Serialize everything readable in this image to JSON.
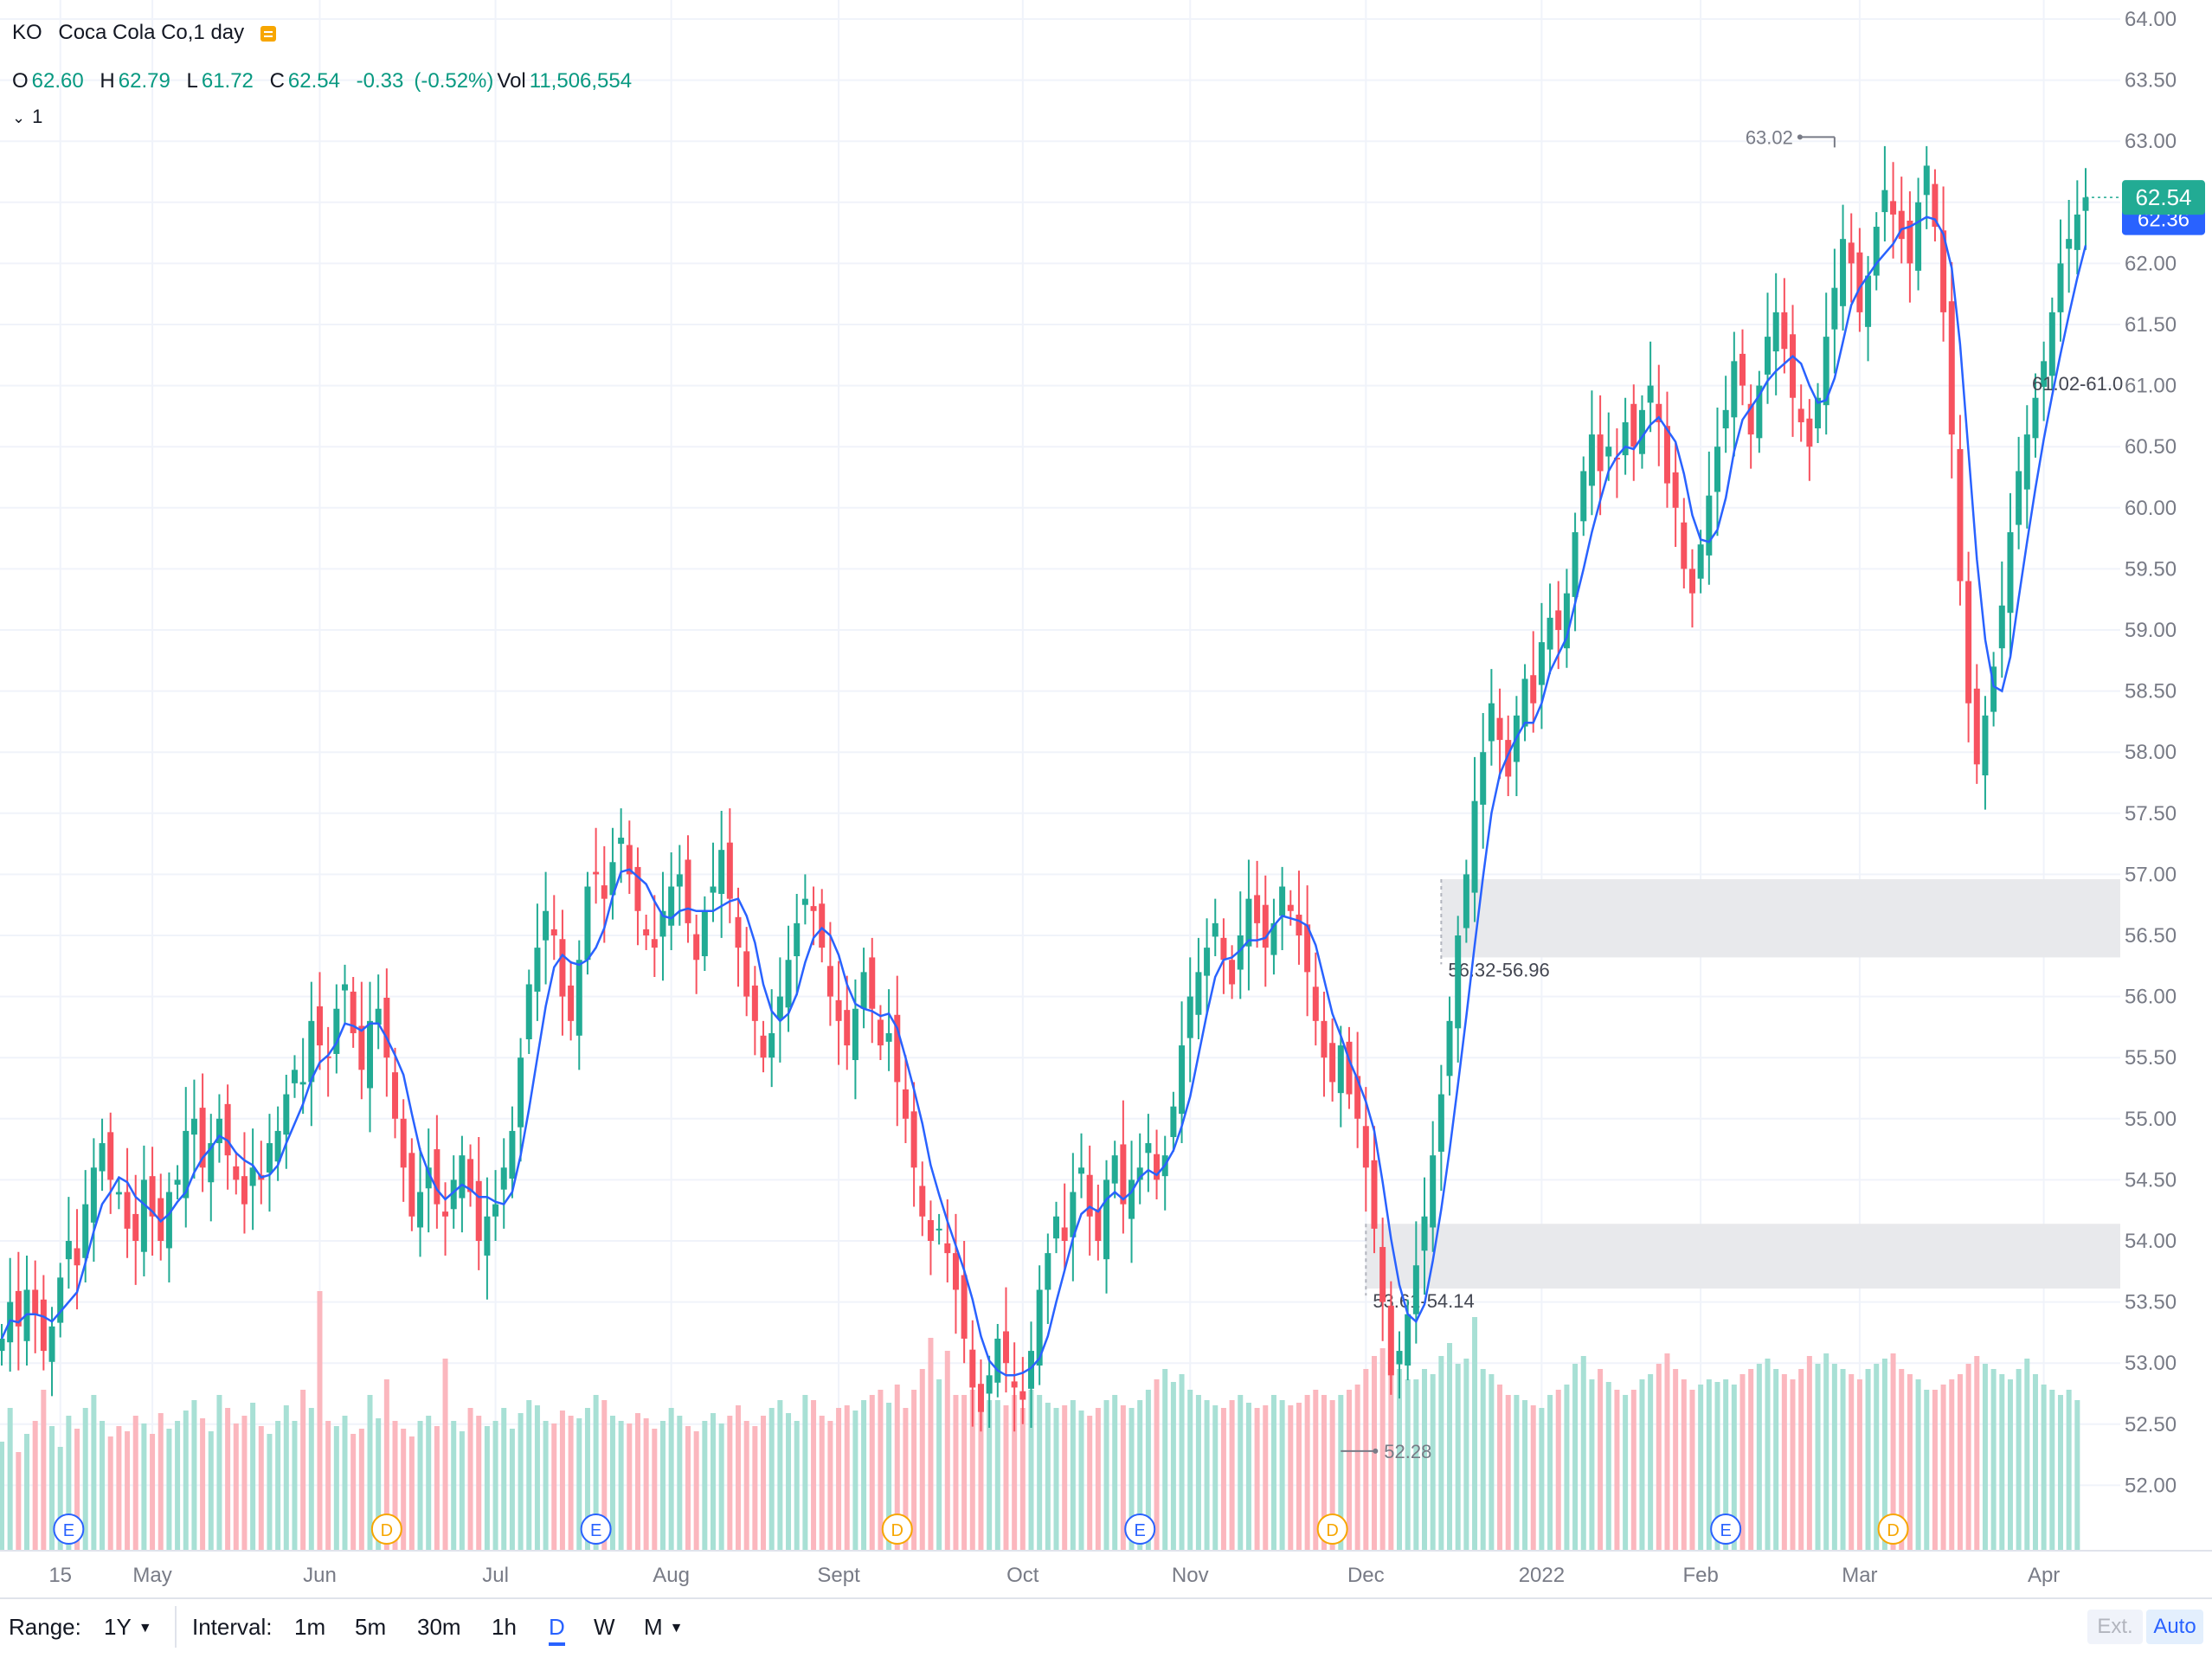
{
  "header": {
    "symbol": "KO",
    "name": "Coca Cola Co,1 day",
    "ohlc": {
      "o_label": "O",
      "o": "62.60",
      "h_label": "H",
      "h": "62.79",
      "l_label": "L",
      "l": "61.72",
      "c_label": "C",
      "c": "62.54",
      "change": "-0.33",
      "change_pct": "(-0.52%)",
      "vol_label": "Vol",
      "vol": "11,506,554"
    },
    "indicator_collapse": "1"
  },
  "toolbar": {
    "range_label": "Range:",
    "range_value": "1Y",
    "interval_label": "Interval:",
    "intervals": [
      "1m",
      "5m",
      "30m",
      "1h",
      "D",
      "W",
      "M"
    ],
    "active_interval": "D",
    "ext_label": "Ext.",
    "auto_label": "Auto"
  },
  "colors": {
    "up": "#22ab94",
    "down": "#f7525f",
    "ma_line": "#2962ff",
    "price_badge": "#22ab94",
    "ma_badge": "#2962ff"
  },
  "chart_data": {
    "type": "candlestick",
    "symbol": "KO",
    "interval": "1 day",
    "y_axis": {
      "min": 51.6,
      "max": 64.1,
      "ticks": [
        "52.00",
        "52.50",
        "53.00",
        "53.50",
        "54.00",
        "54.50",
        "55.00",
        "55.50",
        "56.00",
        "56.50",
        "57.00",
        "57.50",
        "58.00",
        "58.50",
        "59.00",
        "59.50",
        "60.00",
        "60.50",
        "61.00",
        "61.50",
        "62.00",
        "62.50",
        "63.00",
        "63.50",
        "64.00"
      ]
    },
    "x_axis": {
      "labels": [
        "15",
        "May",
        "Jun",
        "Jul",
        "Aug",
        "Sept",
        "Oct",
        "Nov",
        "Dec",
        "2022",
        "Feb",
        "Mar",
        "Apr"
      ],
      "label_positions_bar_index": [
        7,
        18,
        38,
        59,
        80,
        100,
        122,
        142,
        163,
        184,
        203,
        222,
        244
      ]
    },
    "last_price": "62.54",
    "ma_badge": "62.36",
    "annotations": [
      {
        "text": "63.02",
        "type": "high",
        "price": 63.02
      },
      {
        "text": "52.28",
        "type": "low",
        "price": 52.28
      },
      {
        "text": "56.32-56.96",
        "type": "gap",
        "low": 56.32,
        "high": 56.96
      },
      {
        "text": "53.61-54.14",
        "type": "gap",
        "low": 53.61,
        "high": 54.14
      },
      {
        "text": "61.02-61.0",
        "type": "gap-label",
        "price": 61.02
      }
    ],
    "events": [
      {
        "label": "E",
        "bar_index": 8
      },
      {
        "label": "D",
        "bar_index": 46
      },
      {
        "label": "E",
        "bar_index": 71
      },
      {
        "label": "D",
        "bar_index": 107
      },
      {
        "label": "E",
        "bar_index": 136
      },
      {
        "label": "D",
        "bar_index": 159
      },
      {
        "label": "E",
        "bar_index": 206
      },
      {
        "label": "D",
        "bar_index": 226
      }
    ],
    "closes": [
      53.2,
      53.5,
      53.3,
      53.6,
      53.4,
      53.1,
      53.3,
      53.7,
      54.0,
      53.8,
      54.3,
      54.6,
      54.8,
      54.5,
      54.4,
      54.1,
      54.0,
      54.5,
      54.2,
      54.0,
      54.4,
      54.5,
      54.9,
      55.0,
      54.6,
      54.8,
      55.0,
      54.7,
      54.5,
      54.3,
      54.6,
      54.5,
      54.8,
      54.9,
      55.2,
      55.4,
      55.3,
      55.8,
      55.6,
      55.5,
      55.9,
      56.1,
      55.7,
      55.4,
      55.8,
      55.9,
      55.5,
      55.0,
      54.6,
      54.2,
      54.4,
      54.6,
      54.3,
      54.2,
      54.5,
      54.7,
      54.4,
      54.0,
      54.2,
      54.3,
      54.6,
      54.9,
      55.5,
      56.1,
      56.4,
      56.7,
      56.5,
      56.0,
      55.8,
      56.3,
      56.9,
      57.0,
      56.8,
      57.1,
      57.3,
      57.0,
      56.7,
      56.5,
      56.4,
      56.7,
      56.9,
      57.0,
      56.6,
      56.3,
      56.7,
      56.9,
      57.2,
      56.8,
      56.4,
      56.0,
      55.8,
      55.5,
      55.7,
      56.0,
      56.3,
      56.6,
      56.8,
      56.7,
      56.4,
      56.0,
      55.8,
      55.6,
      55.9,
      56.2,
      55.9,
      55.6,
      55.7,
      55.3,
      55.0,
      54.6,
      54.2,
      54.0,
      54.1,
      53.9,
      53.6,
      53.2,
      52.8,
      52.6,
      52.9,
      53.2,
      53.0,
      52.8,
      52.7,
      53.1,
      53.6,
      53.9,
      54.2,
      54.0,
      54.4,
      54.6,
      54.2,
      54.0,
      54.5,
      54.7,
      54.3,
      54.5,
      54.6,
      54.8,
      54.5,
      54.7,
      55.1,
      55.6,
      56.0,
      56.2,
      56.4,
      56.6,
      56.3,
      56.1,
      56.5,
      56.8,
      56.6,
      56.4,
      56.6,
      56.9,
      56.7,
      56.5,
      56.2,
      55.8,
      55.5,
      55.3,
      55.6,
      55.2,
      55.0,
      54.6,
      54.1,
      53.5,
      52.9,
      53.1,
      53.4,
      53.8,
      54.2,
      54.7,
      55.2,
      55.8,
      56.5,
      57.0,
      57.6,
      58.0,
      58.4,
      58.1,
      57.8,
      58.3,
      58.6,
      58.4,
      58.9,
      59.1,
      59.0,
      59.3,
      59.8,
      60.3,
      60.6,
      60.3,
      60.5,
      60.4,
      60.7,
      60.5,
      60.8,
      61.0,
      60.7,
      60.2,
      60.0,
      59.5,
      59.3,
      59.7,
      60.1,
      60.5,
      60.8,
      61.2,
      61.0,
      60.6,
      61.0,
      61.4,
      61.6,
      61.3,
      60.9,
      60.7,
      60.5,
      60.9,
      61.4,
      61.8,
      62.2,
      62.0,
      61.6,
      61.9,
      62.3,
      62.6,
      62.4,
      62.2,
      62.0,
      62.5,
      62.8,
      62.3,
      61.6,
      60.6,
      59.4,
      58.4,
      57.9,
      58.3,
      58.7,
      59.2,
      59.8,
      60.3,
      60.6,
      60.9,
      61.2,
      61.6,
      62.0,
      62.2,
      62.4,
      62.54
    ],
    "volumes": [
      0.42,
      0.55,
      0.38,
      0.45,
      0.5,
      0.62,
      0.48,
      0.4,
      0.52,
      0.47,
      0.55,
      0.6,
      0.5,
      0.44,
      0.48,
      0.46,
      0.52,
      0.49,
      0.45,
      0.53,
      0.47,
      0.5,
      0.54,
      0.58,
      0.51,
      0.46,
      0.6,
      0.55,
      0.49,
      0.52,
      0.57,
      0.48,
      0.45,
      0.5,
      0.56,
      0.5,
      0.62,
      0.55,
      1.0,
      0.5,
      0.48,
      0.52,
      0.45,
      0.47,
      0.6,
      0.51,
      0.66,
      0.5,
      0.47,
      0.44,
      0.5,
      0.52,
      0.48,
      0.74,
      0.5,
      0.46,
      0.55,
      0.52,
      0.48,
      0.5,
      0.55,
      0.47,
      0.53,
      0.58,
      0.56,
      0.5,
      0.49,
      0.54,
      0.52,
      0.51,
      0.55,
      0.6,
      0.58,
      0.52,
      0.5,
      0.49,
      0.53,
      0.51,
      0.47,
      0.5,
      0.55,
      0.52,
      0.48,
      0.46,
      0.5,
      0.53,
      0.49,
      0.52,
      0.56,
      0.5,
      0.48,
      0.52,
      0.55,
      0.58,
      0.53,
      0.5,
      0.6,
      0.58,
      0.52,
      0.5,
      0.55,
      0.56,
      0.54,
      0.58,
      0.6,
      0.62,
      0.57,
      0.64,
      0.55,
      0.62,
      0.7,
      0.82,
      0.66,
      0.77,
      0.6,
      0.6,
      0.62,
      0.6,
      0.58,
      0.58,
      0.56,
      0.6,
      0.55,
      0.62,
      0.6,
      0.57,
      0.55,
      0.56,
      0.58,
      0.54,
      0.52,
      0.55,
      0.58,
      0.6,
      0.56,
      0.55,
      0.58,
      0.62,
      0.66,
      0.7,
      0.65,
      0.68,
      0.62,
      0.6,
      0.58,
      0.56,
      0.55,
      0.58,
      0.6,
      0.57,
      0.55,
      0.56,
      0.6,
      0.58,
      0.56,
      0.57,
      0.6,
      0.62,
      0.6,
      0.58,
      0.6,
      0.62,
      0.64,
      0.7,
      0.75,
      0.78,
      0.72,
      0.7,
      0.66,
      0.66,
      0.7,
      0.68,
      0.75,
      0.8,
      0.72,
      0.74,
      0.9,
      0.7,
      0.68,
      0.64,
      0.6,
      0.6,
      0.58,
      0.56,
      0.55,
      0.6,
      0.62,
      0.64,
      0.72,
      0.75,
      0.66,
      0.7,
      0.65,
      0.62,
      0.6,
      0.62,
      0.66,
      0.68,
      0.72,
      0.76,
      0.7,
      0.66,
      0.62,
      0.64,
      0.66,
      0.65,
      0.66,
      0.64,
      0.68,
      0.7,
      0.72,
      0.74,
      0.7,
      0.68,
      0.66,
      0.7,
      0.75,
      0.72,
      0.76,
      0.72,
      0.7,
      0.68,
      0.66,
      0.7,
      0.72,
      0.74,
      0.76,
      0.7,
      0.68,
      0.66,
      0.62,
      0.62,
      0.64,
      0.66,
      0.68,
      0.72,
      0.75,
      0.72,
      0.7,
      0.68,
      0.66,
      0.7,
      0.74,
      0.68,
      0.64,
      0.62,
      0.6,
      0.62,
      0.58
    ]
  }
}
